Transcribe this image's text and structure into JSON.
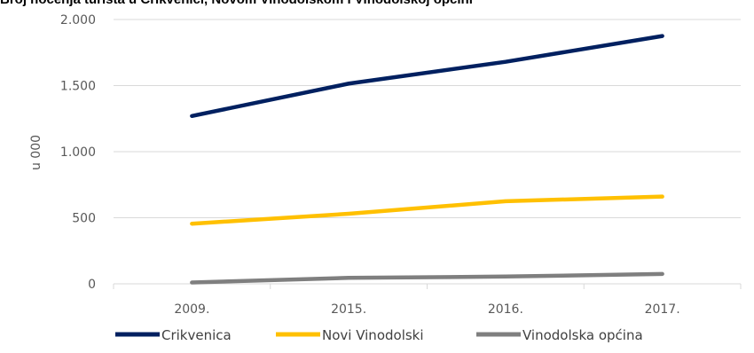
{
  "caption": "Broj noćenja turista u Crikvenici, Novom Vinodolskom i Vinodolskoj općini",
  "chart_data": {
    "type": "line",
    "categories": [
      "2009.",
      "2015.",
      "2016.",
      "2017."
    ],
    "ylabel": "u 000",
    "ylim": [
      0,
      2000
    ],
    "yticks": [
      0,
      500,
      1000,
      1500,
      2000
    ],
    "ytick_labels": [
      "0",
      "500",
      "1.000",
      "1.500",
      "2.000"
    ],
    "grid": true,
    "legend_position": "bottom",
    "series": [
      {
        "name": "Crikvenica",
        "color": "#002060",
        "values": [
          1270,
          1515,
          1680,
          1875
        ]
      },
      {
        "name": "Novi Vinodolski",
        "color": "#FFC000",
        "values": [
          455,
          530,
          625,
          660
        ]
      },
      {
        "name": "Vinodolska općina",
        "color": "#7F7F7F",
        "values": [
          10,
          45,
          55,
          75
        ]
      }
    ]
  }
}
